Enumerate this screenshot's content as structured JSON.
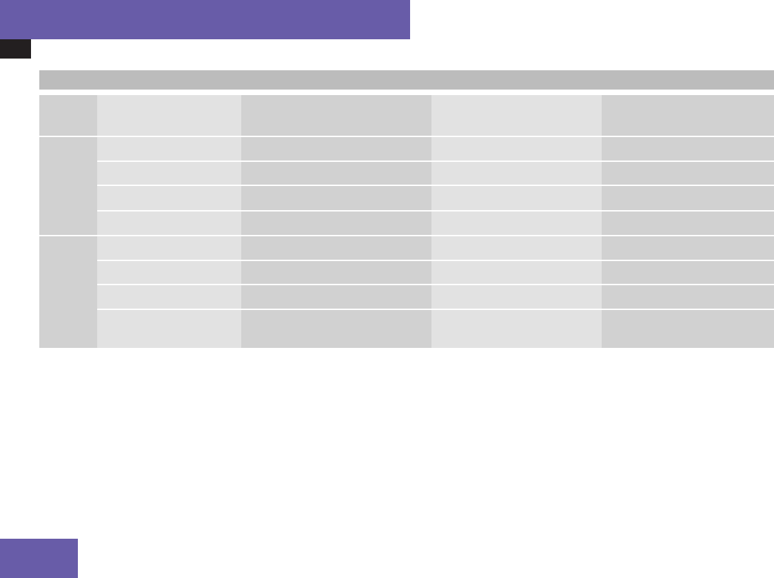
{
  "colors": {
    "accent": "#685ca8",
    "tab_dark": "#231f20",
    "table_title_bar": "#bcbcbc",
    "cell_dark": "#d1d1d1",
    "cell_light": "#e2e2e2"
  }
}
